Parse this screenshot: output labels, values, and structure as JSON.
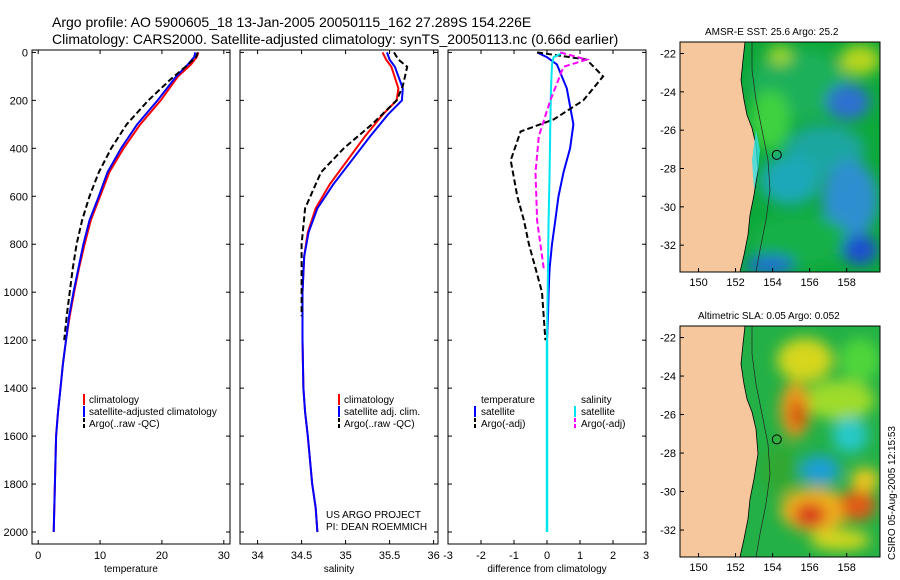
{
  "header": {
    "title_line1": "Argo profile: AO 5900605_18 13-Jan-2005 20050115_162 27.289S 154.226E",
    "title_line2": "Climatology: CARS2000. Satellite-adjusted climatology: synTS_20050113.nc (0.66d earlier)"
  },
  "colors": {
    "climatology": "#ff0000",
    "satellite": "#0000ff",
    "argo": "#000000",
    "salinity_satellite": "#00e5ee",
    "salinity_argo": "#ff00ff",
    "land": "#f6c79d"
  },
  "chart_data": [
    {
      "type": "line",
      "id": "temperature_profile",
      "xlabel": "temperature",
      "ylabel": "",
      "xlim": [
        -1,
        31
      ],
      "ylim": [
        2050,
        -10
      ],
      "xticks": [
        0,
        10,
        20,
        30
      ],
      "xtick_labels": [
        "0",
        "10",
        "20",
        "30"
      ],
      "yticks": [
        0,
        200,
        400,
        600,
        800,
        1000,
        1200,
        1400,
        1600,
        1800,
        2000
      ],
      "ytick_labels": [
        "0",
        "200",
        "400",
        "600",
        "800",
        "1000",
        "1200",
        "1400",
        "1600",
        "1800",
        "2000"
      ],
      "legend": [
        "climatology",
        "satellite-adjusted climatology",
        "Argo(..raw -QC)"
      ],
      "series": [
        {
          "name": "climatology",
          "style": "solid",
          "color": "#ff0000",
          "x": [
            25.9,
            25.6,
            24.7,
            22.6,
            19.8,
            16.5,
            13.8,
            11.5,
            10.0,
            8.5,
            7.5,
            6.6,
            5.8,
            5.1,
            4.5,
            4.0,
            3.6,
            3.2,
            2.9,
            2.7,
            2.5
          ],
          "y": [
            0,
            20,
            50,
            100,
            200,
            300,
            400,
            500,
            600,
            700,
            800,
            900,
            1000,
            1100,
            1200,
            1300,
            1400,
            1500,
            1600,
            1800,
            2000
          ]
        },
        {
          "name": "satellite-adjusted climatology",
          "style": "solid",
          "color": "#0000ff",
          "x": [
            25.4,
            25.2,
            24.2,
            22.3,
            19.3,
            16.0,
            13.4,
            11.2,
            9.8,
            8.3,
            7.3,
            6.5,
            5.7,
            5.0,
            4.5,
            4.0,
            3.6,
            3.2,
            2.9,
            2.7,
            2.5
          ],
          "y": [
            0,
            20,
            50,
            100,
            200,
            300,
            400,
            500,
            600,
            700,
            800,
            900,
            1000,
            1100,
            1200,
            1300,
            1400,
            1500,
            1600,
            1800,
            2000
          ]
        },
        {
          "name": "Argo(..raw -QC)",
          "style": "dashed",
          "color": "#000000",
          "x": [
            25.8,
            25.5,
            23.8,
            21.5,
            17.8,
            14.3,
            11.8,
            9.8,
            8.3,
            7.1,
            6.2,
            5.6,
            5.1,
            4.6,
            4.2
          ],
          "y": [
            0,
            20,
            60,
            110,
            200,
            300,
            400,
            500,
            600,
            700,
            800,
            900,
            1000,
            1100,
            1200
          ]
        }
      ]
    },
    {
      "type": "line",
      "id": "salinity_profile",
      "xlabel": "salinity",
      "ylabel": "",
      "xlim": [
        33.8,
        36.05
      ],
      "ylim": [
        2050,
        -10
      ],
      "xticks": [
        34,
        34.5,
        35,
        35.5,
        36
      ],
      "xtick_labels": [
        "34",
        "34.5",
        "35",
        "35.5",
        "36"
      ],
      "legend": [
        "climatology",
        "satellite adj. clim.",
        "Argo(..raw -QC)"
      ],
      "annotation": [
        "US ARGO PROJECT",
        "PI: DEAN ROEMMICH"
      ],
      "series": [
        {
          "name": "climatology",
          "style": "solid",
          "color": "#ff0000",
          "x": [
            35.42,
            35.46,
            35.52,
            35.6,
            35.58,
            35.42,
            35.22,
            35.02,
            34.82,
            34.66,
            34.57,
            34.53,
            34.51,
            34.51,
            34.52,
            34.54,
            34.57,
            34.62,
            34.66,
            34.68
          ],
          "y": [
            0,
            30,
            60,
            150,
            200,
            260,
            350,
            450,
            550,
            650,
            750,
            850,
            1000,
            1200,
            1400,
            1500,
            1600,
            1800,
            1900,
            2000
          ]
        },
        {
          "name": "satellite adj. clim.",
          "style": "solid",
          "color": "#0000ff",
          "x": [
            35.47,
            35.5,
            35.56,
            35.65,
            35.64,
            35.48,
            35.28,
            35.07,
            34.86,
            34.68,
            34.58,
            34.53,
            34.51,
            34.51,
            34.52,
            34.54,
            34.57,
            34.62,
            34.66,
            34.68
          ],
          "y": [
            0,
            30,
            60,
            150,
            200,
            260,
            350,
            450,
            550,
            650,
            750,
            850,
            1000,
            1200,
            1400,
            1500,
            1600,
            1800,
            1900,
            2000
          ]
        },
        {
          "name": "Argo(..raw -QC)",
          "style": "dashed",
          "color": "#000000",
          "x": [
            35.55,
            35.6,
            35.7,
            35.65,
            35.58,
            35.3,
            34.98,
            34.72,
            34.54,
            34.5,
            34.5,
            34.5
          ],
          "y": [
            0,
            30,
            60,
            140,
            200,
            300,
            400,
            500,
            650,
            800,
            950,
            1100
          ]
        }
      ]
    },
    {
      "type": "line",
      "id": "difference_profile",
      "xlabel": "difference from climatology",
      "ylabel": "",
      "xlim": [
        -3,
        3
      ],
      "ylim": [
        2050,
        -10
      ],
      "xticks": [
        -3,
        -2,
        -1,
        0,
        1,
        2,
        3
      ],
      "xtick_labels": [
        "-3",
        "-2",
        "-1",
        "0",
        "1",
        "2",
        "3"
      ],
      "legend_title_left": "temperature",
      "legend_title_right": "salinity",
      "legend": [
        "satellite",
        "Argo(-adj)",
        "satellite",
        "Argo(-adj)"
      ],
      "series": [
        {
          "name": "temperature satellite",
          "style": "solid",
          "color": "#0000ff",
          "x": [
            -0.3,
            0.0,
            0.3,
            0.6,
            0.8,
            0.7,
            0.5,
            0.35,
            0.25,
            0.15,
            0.08,
            0.05,
            0.03,
            0.0,
            0.0
          ],
          "y": [
            0,
            20,
            50,
            150,
            300,
            400,
            500,
            600,
            700,
            800,
            900,
            1000,
            1100,
            1200,
            2000
          ]
        },
        {
          "name": "temperature Argo(-adj)",
          "style": "dashed",
          "color": "#000000",
          "x": [
            -0.3,
            1.2,
            1.7,
            1.1,
            0.2,
            -0.8,
            -1.1,
            -0.9,
            -0.7,
            -0.55,
            -0.35,
            -0.15,
            -0.05
          ],
          "y": [
            0,
            30,
            100,
            200,
            280,
            330,
            450,
            600,
            700,
            800,
            900,
            1000,
            1200
          ]
        },
        {
          "name": "salinity satellite",
          "style": "solid",
          "color": "#00e5ee",
          "x": [
            0.5,
            0.2,
            0.15,
            0.12,
            0.1,
            0.08,
            0.05,
            0.03,
            0.0,
            0.0
          ],
          "y": [
            0,
            20,
            50,
            150,
            300,
            500,
            700,
            900,
            1200,
            2000
          ]
        },
        {
          "name": "salinity Argo(-adj)",
          "style": "dashed",
          "color": "#ff00ff",
          "x": [
            0.4,
            1.2,
            0.5,
            0.1,
            -0.25,
            -0.35,
            -0.3,
            -0.1
          ],
          "y": [
            0,
            30,
            60,
            200,
            350,
            500,
            700,
            900
          ]
        }
      ]
    }
  ],
  "maps": [
    {
      "id": "sst_map",
      "title": "AMSR-E SST: 25.6 Argo: 25.2",
      "lon_ticks": [
        "150",
        "152",
        "154",
        "156",
        "158"
      ],
      "lat_ticks": [
        "-22",
        "-24",
        "-26",
        "-28",
        "-30",
        "-32"
      ],
      "float_lon": 154.226,
      "float_lat": -27.289
    },
    {
      "id": "sla_map",
      "title": "Altimetric SLA: 0.05 Argo: 0.052",
      "lon_ticks": [
        "150",
        "152",
        "154",
        "156",
        "158"
      ],
      "lat_ticks": [
        "-22",
        "-24",
        "-26",
        "-28",
        "-30",
        "-32"
      ],
      "float_lon": 154.226,
      "float_lat": -27.289
    }
  ],
  "footer": {
    "stamp": "CSIRO 05-Aug-2005 12:15:53"
  }
}
